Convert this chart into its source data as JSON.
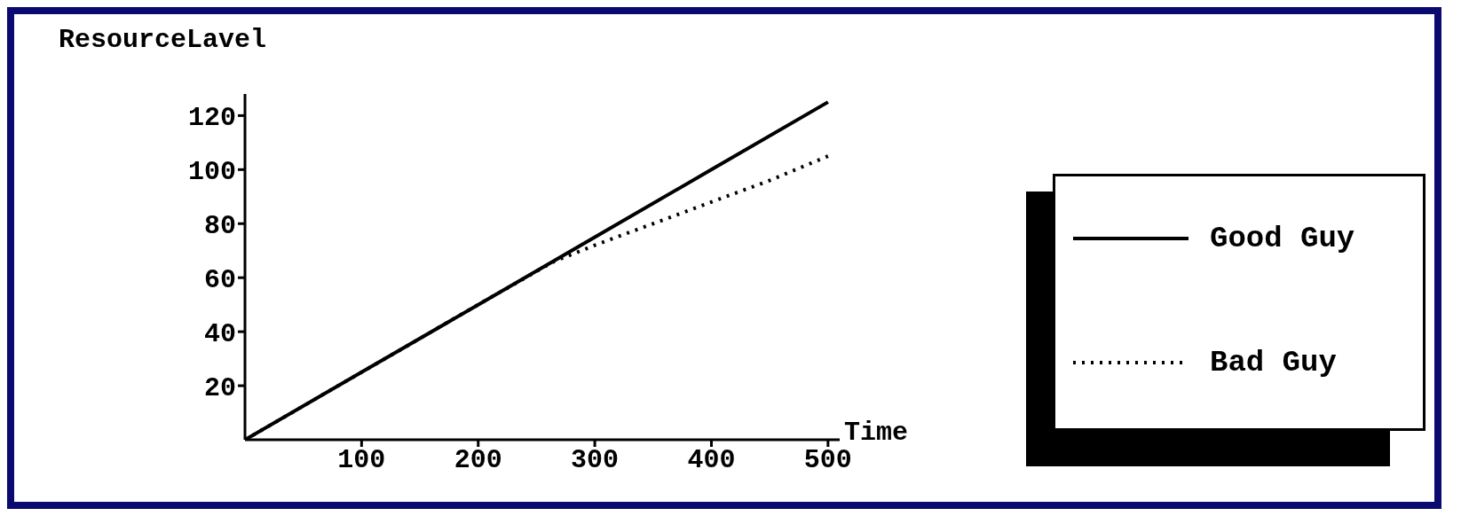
{
  "chart_data": {
    "type": "line",
    "xlabel": "Time",
    "ylabel": "ResourceLavel",
    "x": [
      0,
      100,
      200,
      300,
      400,
      500
    ],
    "series": [
      {
        "name": "Good Guy",
        "color": "#000000",
        "line_style": "solid",
        "values": [
          0,
          25,
          50,
          75,
          100,
          125
        ]
      },
      {
        "name": "Bad Guy",
        "color": "#000000",
        "line_style": "dotted",
        "x": [
          0,
          100,
          200,
          265,
          300,
          350,
          400,
          450,
          500
        ],
        "values": [
          0,
          25,
          50,
          66,
          72,
          80,
          88,
          96,
          105
        ]
      }
    ],
    "xlim": [
      0,
      510
    ],
    "xticks": [
      100,
      200,
      300,
      400,
      500
    ],
    "ylim": [
      0,
      128
    ],
    "yticks": [
      20,
      40,
      60,
      80,
      100,
      120
    ],
    "legend": "right",
    "marker": "none"
  }
}
